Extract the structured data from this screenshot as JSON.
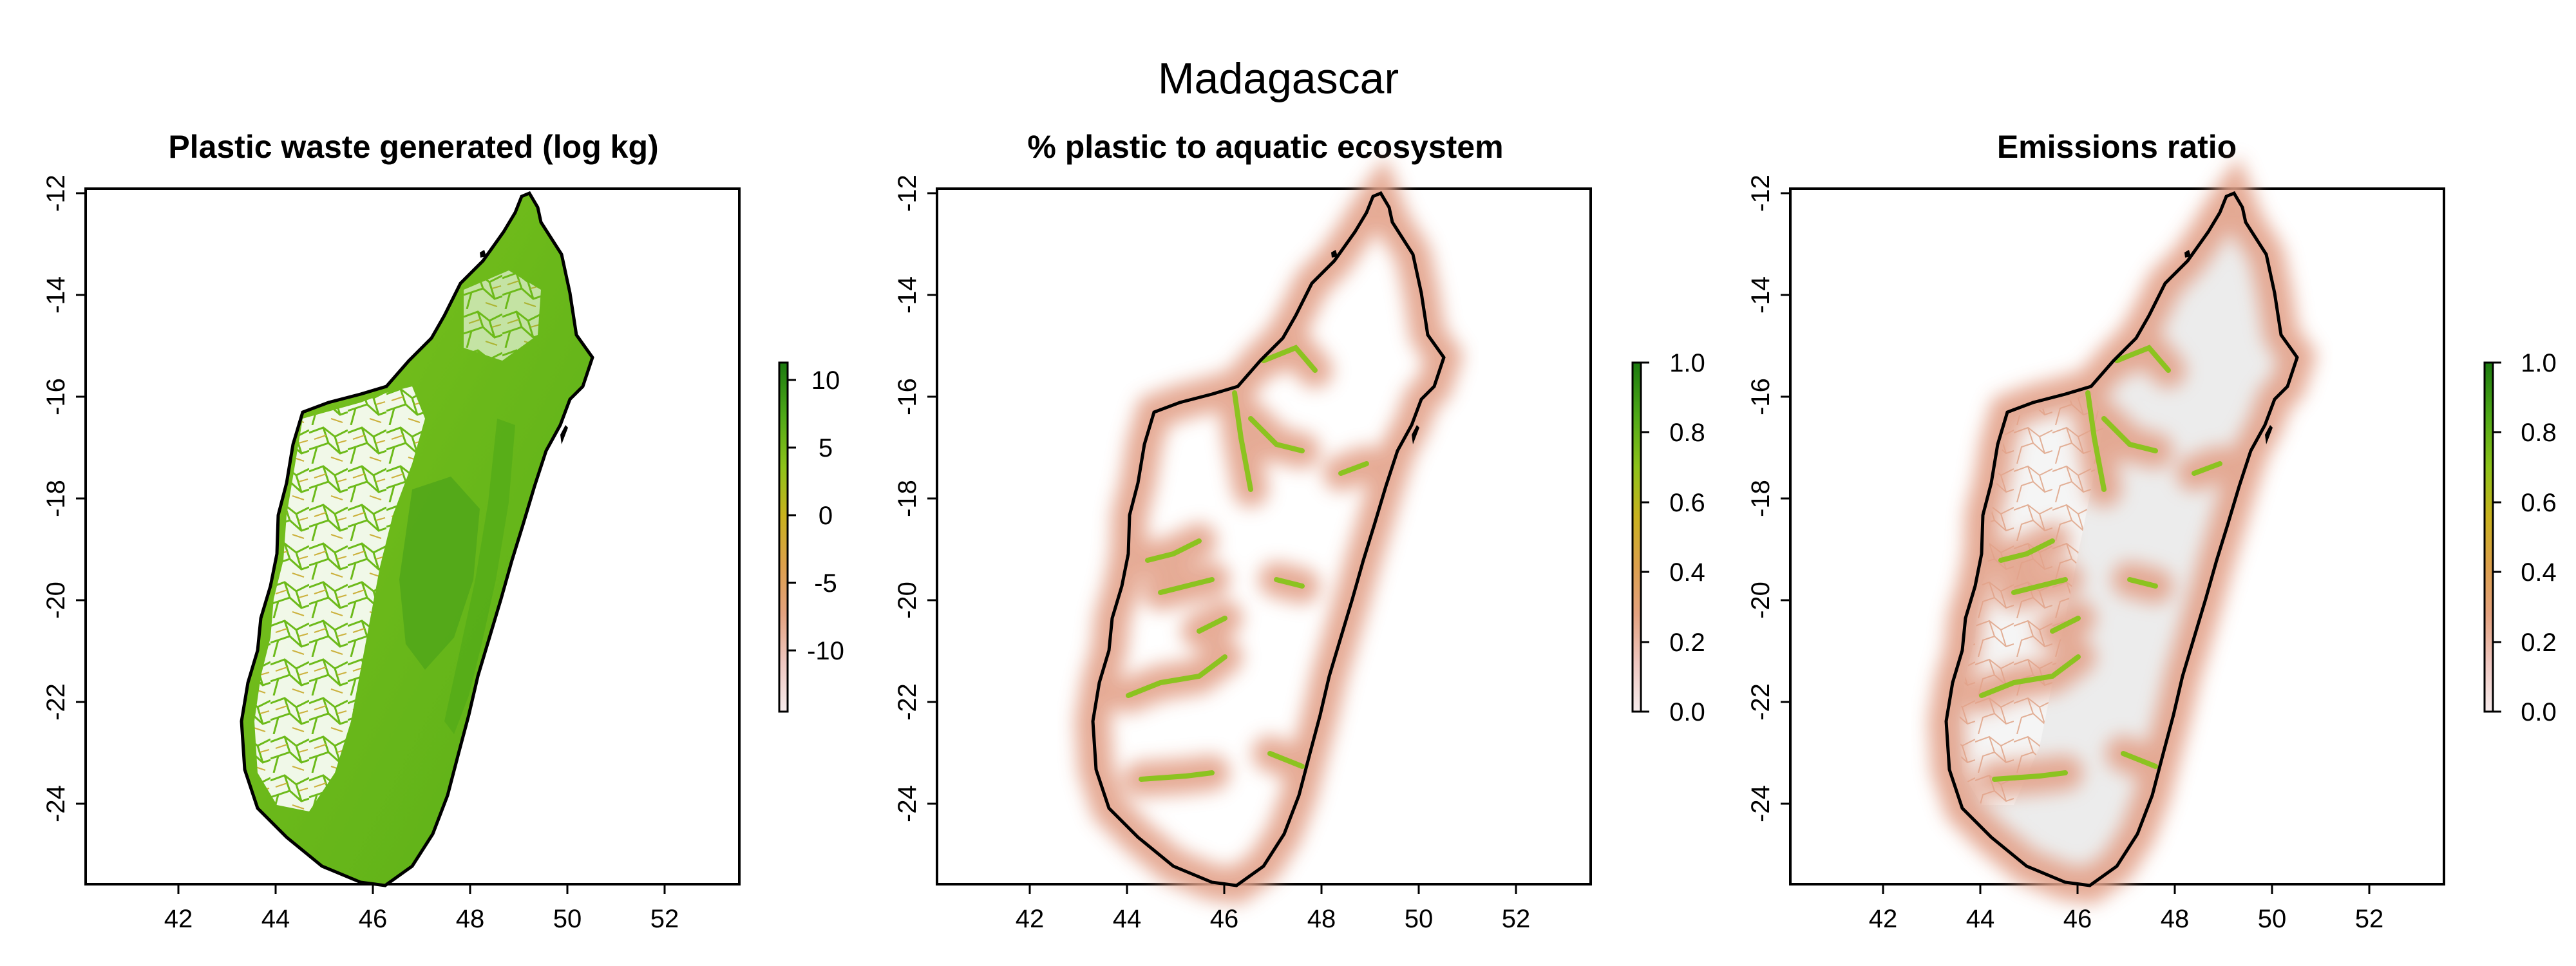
{
  "figure": {
    "title": "Madagascar"
  },
  "colors": {
    "ramp": [
      "#f7ecec",
      "#efc7c0",
      "#e4a27f",
      "#dca04b",
      "#c9b21e",
      "#8ec31a",
      "#4ea817",
      "#1c7a10"
    ],
    "land_zero": "#e8e8e8",
    "river": "#7fbf20",
    "coast": "#000000",
    "coast_inner": "#c8c400"
  },
  "panels": [
    {
      "title": "Plastic waste generated (log kg)",
      "x_ticks": [
        "42",
        "44",
        "46",
        "48",
        "50",
        "52"
      ],
      "y_ticks": [
        "-12",
        "-14",
        "-16",
        "-18",
        "-20",
        "-22",
        "-24"
      ],
      "colorbar": {
        "ticks": [
          "10",
          "5",
          "0",
          "-5",
          "-10"
        ],
        "range": [
          -14,
          12
        ]
      },
      "style": "waste"
    },
    {
      "title": "% plastic to aquatic ecosystem",
      "x_ticks": [
        "42",
        "44",
        "46",
        "48",
        "50",
        "52"
      ],
      "y_ticks": [
        "-12",
        "-14",
        "-16",
        "-18",
        "-20",
        "-22",
        "-24"
      ],
      "colorbar": {
        "ticks": [
          "1.0",
          "0.8",
          "0.6",
          "0.4",
          "0.2",
          "0.0"
        ],
        "range": [
          0,
          1
        ]
      },
      "style": "aquatic"
    },
    {
      "title": "Emissions ratio",
      "x_ticks": [
        "42",
        "44",
        "46",
        "48",
        "50",
        "52"
      ],
      "y_ticks": [
        "-12",
        "-14",
        "-16",
        "-18",
        "-20",
        "-22",
        "-24"
      ],
      "colorbar": {
        "ticks": [
          "1.0",
          "0.8",
          "0.6",
          "0.4",
          "0.2",
          "0.0"
        ],
        "range": [
          0,
          1
        ]
      },
      "style": "emissions"
    }
  ]
}
